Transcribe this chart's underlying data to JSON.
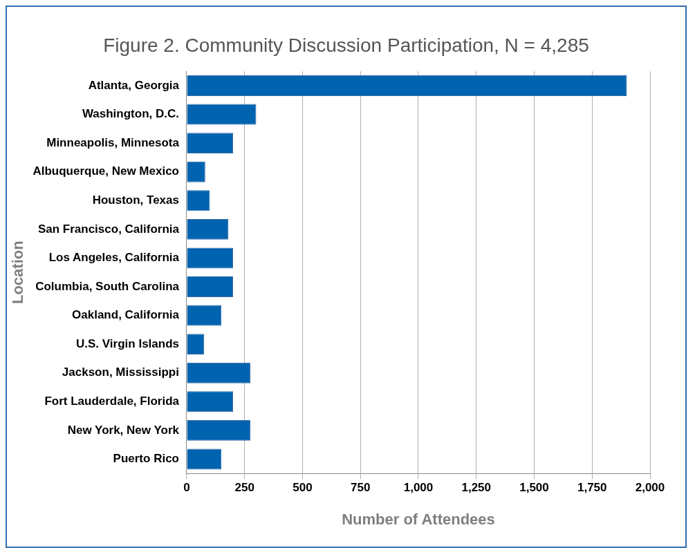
{
  "chart_data": {
    "type": "bar",
    "orientation": "horizontal",
    "title": "Figure 2. Community Discussion Participation, N = 4,285",
    "xlabel": "Number of Attendees",
    "ylabel": "Location",
    "categories": [
      "Atlanta, Georgia",
      "Washington, D.C.",
      "Minneapolis, Minnesota",
      "Albuquerque, New Mexico",
      "Houston, Texas",
      "San Francisco, California",
      "Los Angeles, California",
      "Columbia, South Carolina",
      "Oakland, California",
      "U.S. Virgin Islands",
      "Jackson, Mississippi",
      "Fort Lauderdale, Florida",
      "New York, New York",
      "Puerto Rico"
    ],
    "values": [
      1900,
      300,
      200,
      80,
      100,
      180,
      200,
      200,
      150,
      75,
      275,
      200,
      275,
      150
    ],
    "color": "#0063b0",
    "xlim": [
      0,
      2000
    ],
    "xticks": [
      0,
      {
        "value": 250,
        "label": "250"
      },
      {
        "value": 500,
        "label": "500"
      },
      {
        "value": 750,
        "label": "750"
      },
      {
        "value": 1000,
        "label": "1,000"
      },
      {
        "value": 1250,
        "label": "1,250"
      },
      {
        "value": 1500,
        "label": "1,500"
      },
      {
        "value": 1750,
        "label": "1,750"
      },
      {
        "value": 2000,
        "label": "2,000"
      }
    ],
    "grid": "x",
    "legend": false
  }
}
